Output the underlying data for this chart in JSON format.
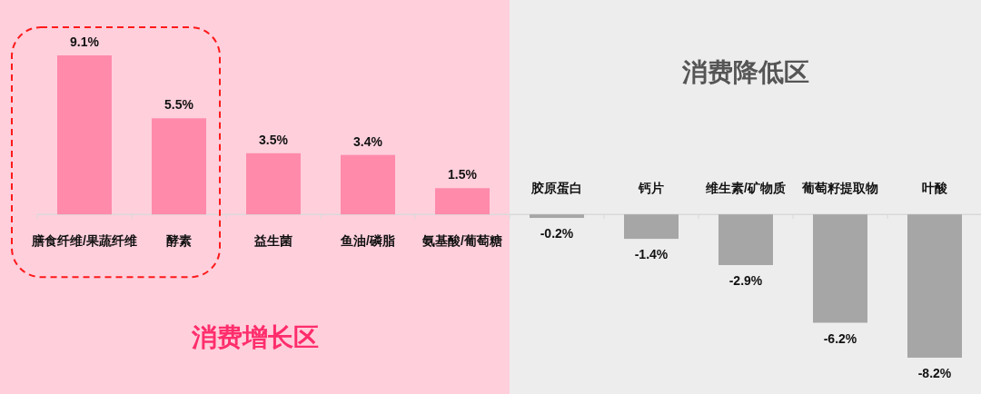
{
  "chart_data": {
    "type": "bar",
    "categories": [
      "膳食纤维/果蔬纤维",
      "酵素",
      "益生菌",
      "鱼油/磷脂",
      "氨基酸/葡萄糖",
      "胶原蛋白",
      "钙片",
      "维生素/矿物质",
      "葡萄籽提取物",
      "叶酸"
    ],
    "values": [
      9.1,
      5.5,
      3.5,
      3.4,
      1.5,
      -0.2,
      -1.4,
      -2.9,
      -6.2,
      -8.2
    ],
    "colors": [
      "#ff8aaa",
      "#ff8aaa",
      "#ff8aaa",
      "#ff8aaa",
      "#ff8aaa",
      "#a6a6a6",
      "#a6a6a6",
      "#a6a6a6",
      "#a6a6a6",
      "#a6a6a6"
    ],
    "value_labels": [
      "9.1%",
      "5.5%",
      "3.5%",
      "3.4%",
      "1.5%",
      "-0.2%",
      "-1.4%",
      "-2.9%",
      "-6.2%",
      "-8.2%"
    ],
    "bands": [
      {
        "axis": "x",
        "from": "膳食纤维/果蔬纤维",
        "to": "氨基酸/葡萄糖",
        "label": "消费增长区",
        "color": "#ffcfdc"
      },
      {
        "axis": "x",
        "from": "胶原蛋白",
        "to": "叶酸",
        "label": "消费降低区",
        "color": "#ededed"
      }
    ]
  }
}
